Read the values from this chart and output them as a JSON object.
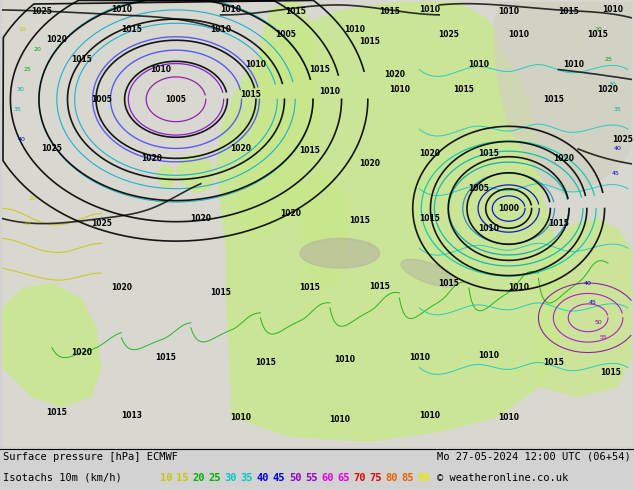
{
  "line1_left": "Surface pressure [hPa] ECMWF",
  "line1_right": "Mo 27-05-2024 12:00 UTC (06+54)",
  "line2_label": "Isotachs 10m (km/h)",
  "line2_copyright": "© weatheronline.co.uk",
  "isotach_values": [
    "10",
    "15",
    "20",
    "25",
    "30",
    "35",
    "40",
    "45",
    "50",
    "55",
    "60",
    "65",
    "70",
    "75",
    "80",
    "85",
    "90"
  ],
  "isotach_colors": [
    "#c8c800",
    "#c8c800",
    "#00b400",
    "#00b400",
    "#00c8c8",
    "#00c8c8",
    "#0000e6",
    "#0000e6",
    "#9600c8",
    "#9600c8",
    "#e600e6",
    "#e600e6",
    "#e60000",
    "#e60000",
    "#e66400",
    "#e66400",
    "#e6e600"
  ],
  "bg_color": "#d2d2d2",
  "fig_width": 6.34,
  "fig_height": 4.9,
  "dpi": 100,
  "map_colors": {
    "land_green": "#c8e68c",
    "land_light": "#e8e8d0",
    "sea_gray": "#c8c8c8",
    "contour_black": "#000000",
    "contour_cyan": "#00c8c8",
    "contour_yellow": "#c8c800",
    "contour_green": "#00a000"
  }
}
